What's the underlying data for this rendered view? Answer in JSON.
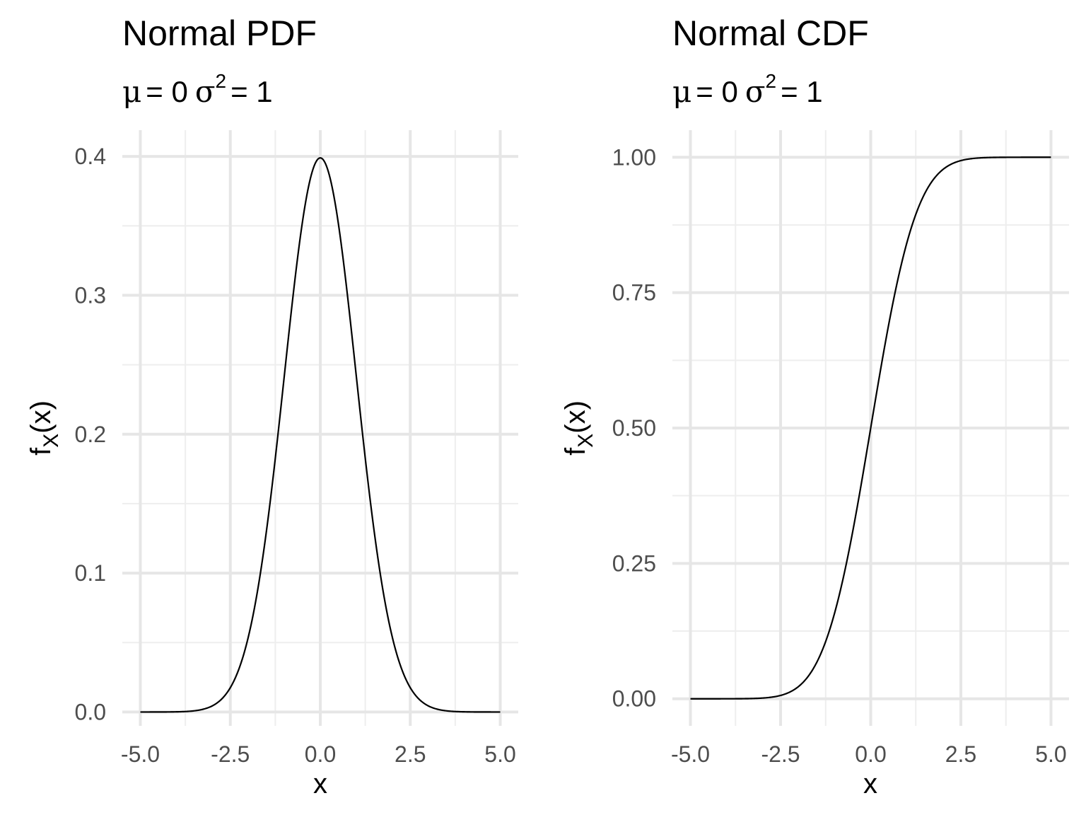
{
  "chart_data": [
    {
      "type": "line",
      "title": "Normal PDF",
      "subtitle": {
        "mu_symbol": "μ",
        "mu_value": "= 0",
        "sigma_symbol": "σ",
        "sigma_power": "2",
        "sigma_value": "= 1"
      },
      "xlabel": "x",
      "ylabel": {
        "base": "f",
        "sub": "X",
        "arg": "(x)"
      },
      "xlim": [
        -5.0,
        5.0
      ],
      "ylim": [
        -0.00997,
        0.4189
      ],
      "x_ticks": [
        -5.0,
        -2.5,
        0.0,
        2.5,
        5.0
      ],
      "x_tick_labels": [
        "-5.0",
        "-2.5",
        "0.0",
        "2.5",
        "5.0"
      ],
      "y_ticks": [
        0.0,
        0.1,
        0.2,
        0.3,
        0.4
      ],
      "y_tick_labels": [
        "0.0",
        "0.1",
        "0.2",
        "0.3",
        "0.4"
      ],
      "grid": true,
      "series": [
        {
          "function": "normal_pdf",
          "mu": 0,
          "sigma": 1,
          "x": [
            -5.0,
            -4.0,
            -3.5,
            -3.0,
            -2.5,
            -2.0,
            -1.5,
            -1.0,
            -0.5,
            0.0,
            0.5,
            1.0,
            1.5,
            2.0,
            2.5,
            3.0,
            3.5,
            4.0,
            5.0
          ],
          "y": [
            1.5e-06,
            0.0001,
            0.0009,
            0.0044,
            0.0175,
            0.054,
            0.1295,
            0.242,
            0.3521,
            0.3989,
            0.3521,
            0.242,
            0.1295,
            0.054,
            0.0175,
            0.0044,
            0.0009,
            0.0001,
            1.5e-06
          ]
        }
      ]
    },
    {
      "type": "line",
      "title": "Normal CDF",
      "subtitle": {
        "mu_symbol": "μ",
        "mu_value": "= 0",
        "sigma_symbol": "σ",
        "sigma_power": "2",
        "sigma_value": "= 1"
      },
      "xlabel": "x",
      "ylabel": {
        "base": "f",
        "sub": "X",
        "arg": "(x)"
      },
      "xlim": [
        -5.0,
        5.0
      ],
      "ylim": [
        -0.05,
        1.05
      ],
      "x_ticks": [
        -5.0,
        -2.5,
        0.0,
        2.5,
        5.0
      ],
      "x_tick_labels": [
        "-5.0",
        "-2.5",
        "0.0",
        "2.5",
        "5.0"
      ],
      "y_ticks": [
        0.0,
        0.25,
        0.5,
        0.75,
        1.0
      ],
      "y_tick_labels": [
        "0.00",
        "0.25",
        "0.50",
        "0.75",
        "1.00"
      ],
      "grid": true,
      "series": [
        {
          "function": "normal_cdf",
          "mu": 0,
          "sigma": 1,
          "x": [
            -5.0,
            -4.0,
            -3.0,
            -2.5,
            -2.0,
            -1.5,
            -1.0,
            -0.5,
            0.0,
            0.5,
            1.0,
            1.5,
            2.0,
            2.5,
            3.0,
            4.0,
            5.0
          ],
          "y": [
            3e-07,
            3e-05,
            0.0013,
            0.0062,
            0.0228,
            0.0668,
            0.1587,
            0.3085,
            0.5,
            0.6915,
            0.8413,
            0.9332,
            0.9772,
            0.9938,
            0.9987,
            0.99997,
            0.9999997
          ]
        }
      ]
    }
  ]
}
